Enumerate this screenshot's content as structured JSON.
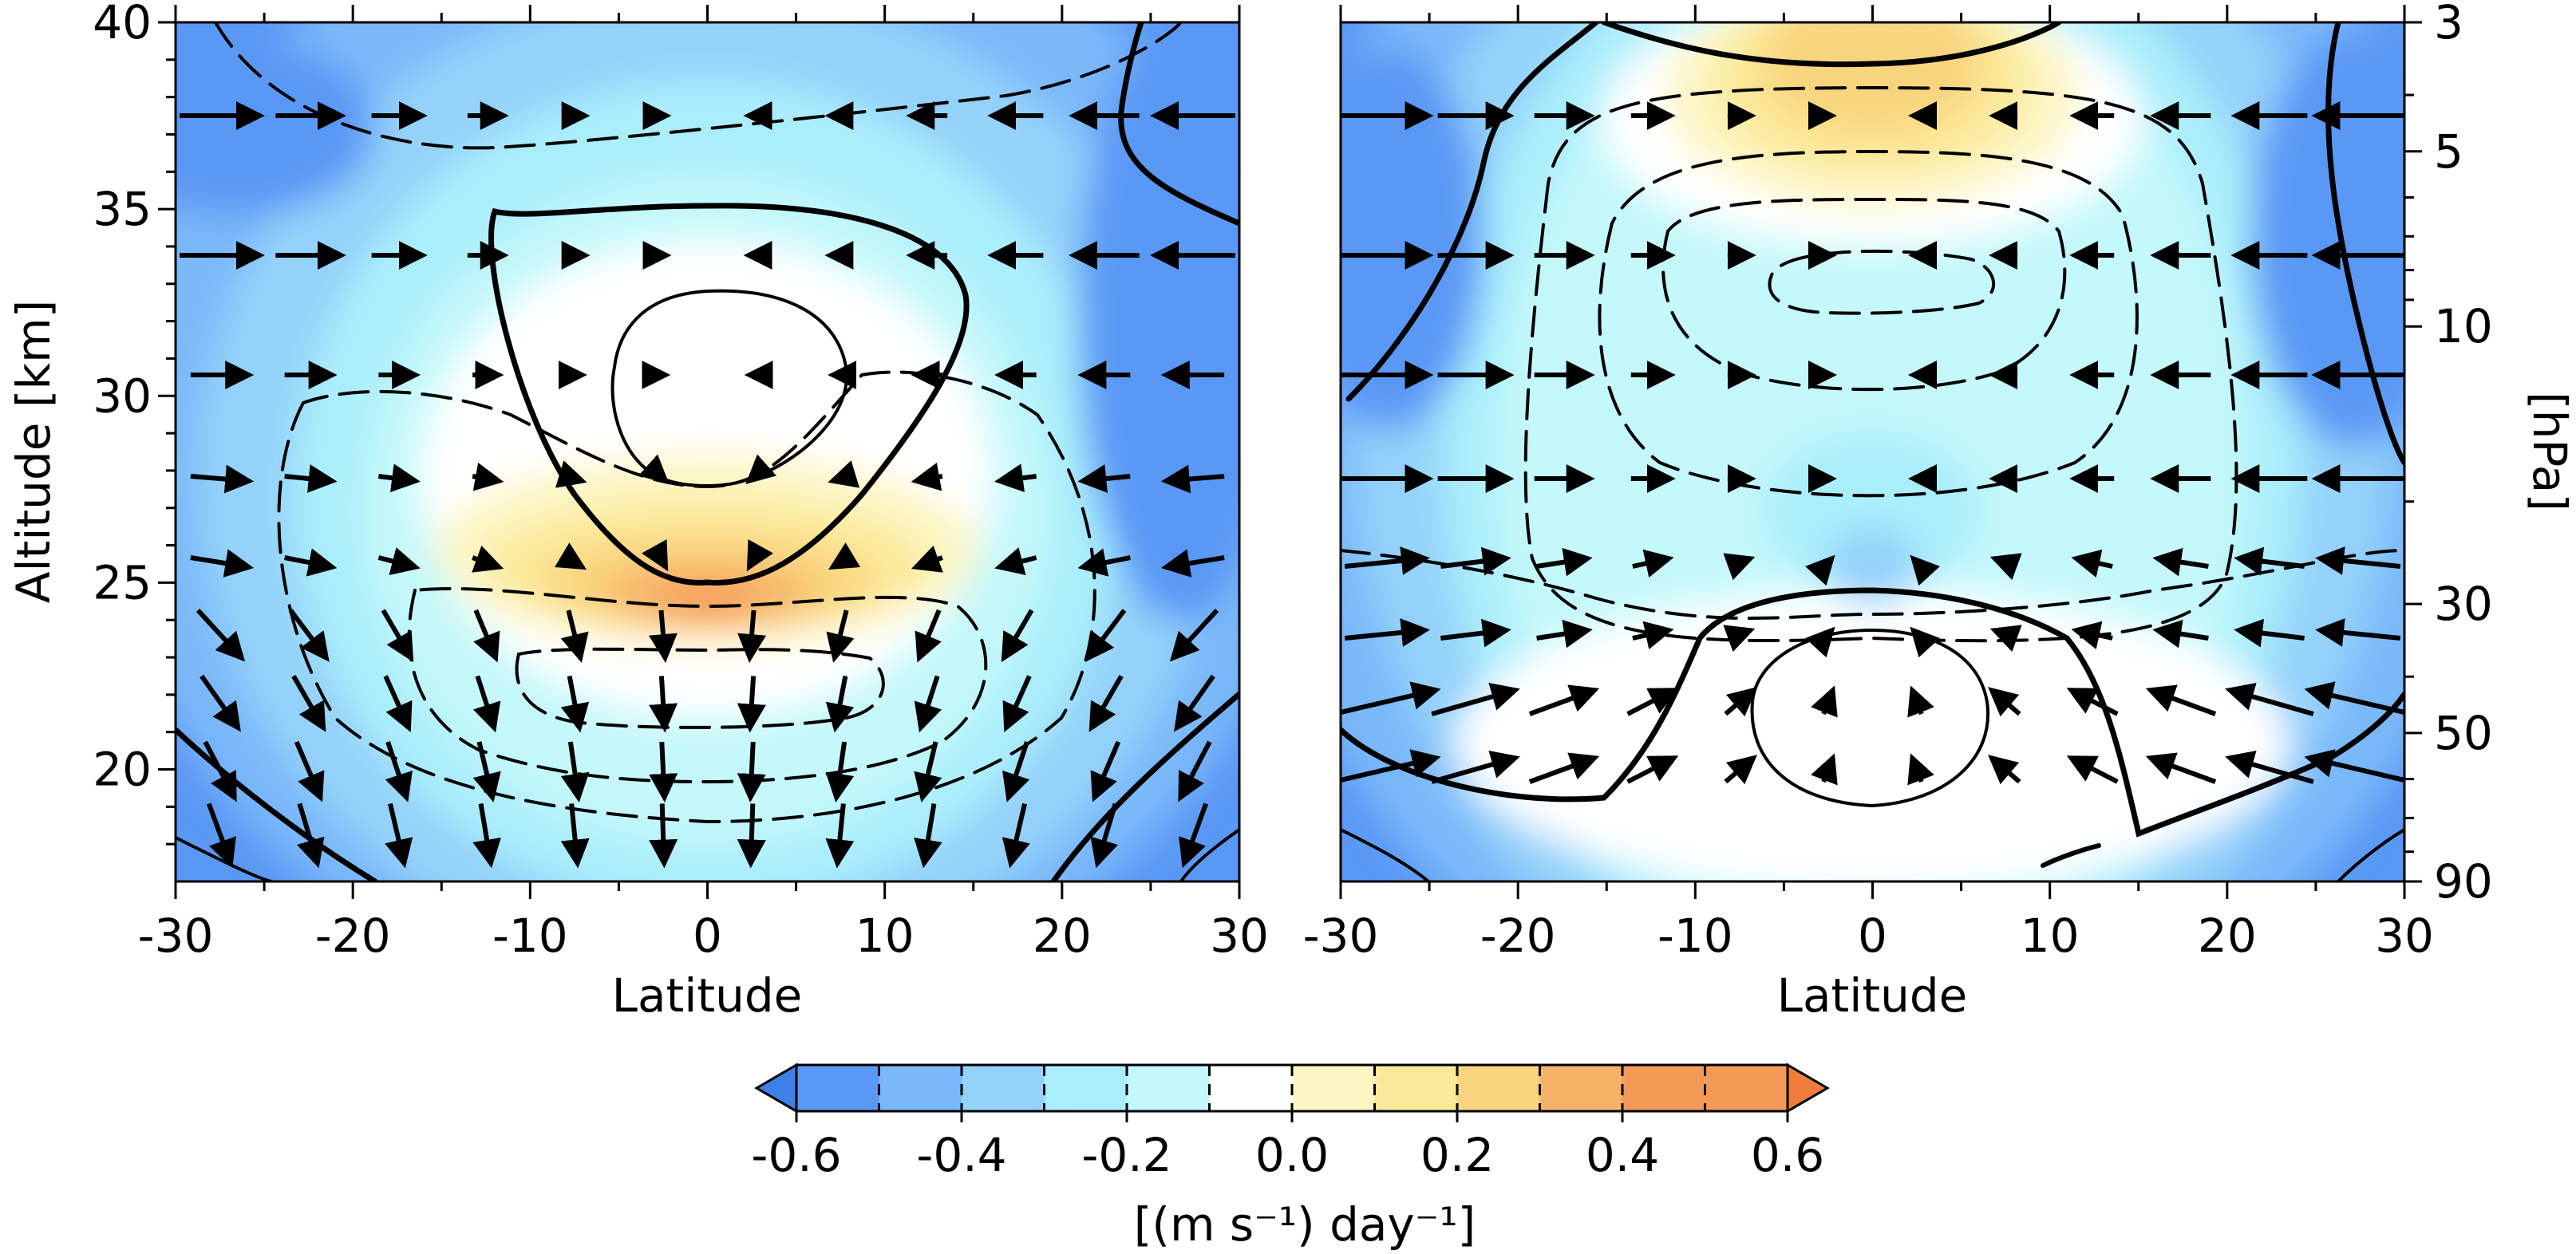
{
  "chart_data": [
    {
      "type": "heatmap",
      "panel": "left",
      "xlabel": "Latitude",
      "ylabel": "Altitude [km]",
      "xlim": [
        -30,
        30
      ],
      "ylim": [
        17,
        40
      ],
      "xticks": [
        -30,
        -20,
        -10,
        0,
        10,
        20,
        30
      ],
      "yticks": [
        20,
        25,
        30,
        35,
        40
      ],
      "grid": false,
      "overlays": "black solid and dashed contour lines, black wind-vector arrows",
      "field_extremes": [
        {
          "lat": 0,
          "alt": 24.7,
          "value": 0.55
        },
        {
          "lat": 0,
          "alt": 30.5,
          "value": 0.05
        },
        {
          "lat": -25,
          "alt": 38,
          "value": -0.6
        },
        {
          "lat": 27,
          "alt": 34,
          "value": -0.6
        }
      ]
    },
    {
      "type": "heatmap",
      "panel": "right",
      "xlabel": "Latitude",
      "ylabel": "[hPa]",
      "xlim": [
        -30,
        30
      ],
      "ylim": [
        90,
        3
      ],
      "yscale": "log",
      "xticks": [
        -30,
        -20,
        -10,
        0,
        10,
        20,
        30
      ],
      "yticks": [
        3,
        5,
        10,
        30,
        50,
        90
      ],
      "grid": false,
      "overlays": "black solid and dashed contour lines, black wind-vector arrows",
      "field_extremes": [
        {
          "lat": 0,
          "hPa": 3.5,
          "value": 0.35
        },
        {
          "lat": 0,
          "hPa": 40,
          "value": 0.0
        },
        {
          "lat": -28,
          "hPa": 6,
          "value": -0.6
        },
        {
          "lat": 28,
          "hPa": 7,
          "value": -0.6
        }
      ]
    }
  ],
  "colorbar": {
    "ticks": [
      "-0.6",
      "-0.4",
      "-0.2",
      "0.0",
      "0.2",
      "0.4",
      "0.6"
    ],
    "label": "[(m s⁻¹) day⁻¹]",
    "levels": [
      -0.6,
      -0.5,
      -0.4,
      -0.3,
      -0.2,
      -0.1,
      0.1,
      0.2,
      0.3,
      0.4,
      0.5,
      0.6
    ],
    "colors": [
      "#5a98f5",
      "#7ab8f9",
      "#94d2fa",
      "#abeefb",
      "#c4f8fa",
      "#ffffff",
      "#fdf6c4",
      "#fbe99a",
      "#f9d47e",
      "#f7b26a",
      "#f49a58"
    ],
    "extend": "both"
  }
}
